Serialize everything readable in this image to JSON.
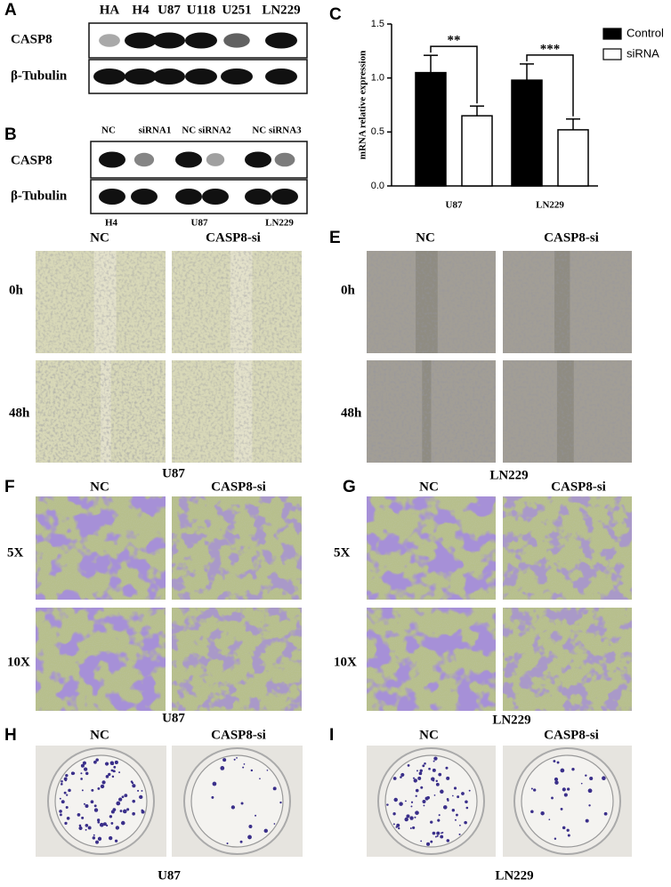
{
  "chart_data": {
    "type": "bar",
    "panel_label": "C",
    "ylabel": "mRNA relative expression",
    "categories": [
      "U87",
      "LN229"
    ],
    "series": [
      {
        "name": "Control",
        "color": "#000000",
        "values": [
          1.05,
          0.98
        ],
        "errors": [
          0.16,
          0.15
        ]
      },
      {
        "name": "siRNA",
        "color": "#ffffff",
        "values": [
          0.65,
          0.52
        ],
        "errors": [
          0.09,
          0.1
        ]
      }
    ],
    "annotations": [
      "**",
      "***"
    ],
    "ylim": [
      0,
      1.5
    ],
    "yticks": [
      {
        "value": 0,
        "label": "0.0"
      },
      {
        "value": 0.5,
        "label": "0.5"
      },
      {
        "value": 1,
        "label": "1.0"
      },
      {
        "value": 1.5,
        "label": "1.5"
      }
    ],
    "legend": "upper right"
  },
  "panels": {
    "A": {
      "letter": "A",
      "lanes": [
        "HA",
        "H4",
        "U87",
        "U118",
        "U251",
        "LN229"
      ],
      "rows": [
        "CASP8",
        "β-Tubulin"
      ]
    },
    "B": {
      "letter": "B",
      "lanes": [
        "NC",
        "siRNA1",
        "NC siRNA2",
        "NC siRNA3"
      ],
      "rows": [
        "CASP8",
        "β-Tubulin"
      ],
      "cell_lines": [
        "H4",
        "U87",
        "LN229"
      ]
    },
    "D": {
      "columns": [
        "NC",
        "CASP8-si"
      ],
      "rows": [
        "0h",
        "48h"
      ],
      "cell_line": "U87"
    },
    "E": {
      "letter": "E",
      "columns": [
        "NC",
        "CASP8-si"
      ],
      "rows": [
        "0h",
        "48h"
      ],
      "cell_line": "LN229"
    },
    "F": {
      "letter": "F",
      "columns": [
        "NC",
        "CASP8-si"
      ],
      "rows": [
        "5X",
        "10X"
      ],
      "cell_line": "U87"
    },
    "G": {
      "letter": "G",
      "columns": [
        "NC",
        "CASP8-si"
      ],
      "rows": [
        "5X",
        "10X"
      ],
      "cell_line": "LN229"
    },
    "H": {
      "letter": "H",
      "columns": [
        "NC",
        "CASP8-si"
      ],
      "cell_line": "U87"
    },
    "I": {
      "letter": "I",
      "columns": [
        "NC",
        "CASP8-si"
      ],
      "cell_line": "LN229"
    }
  }
}
